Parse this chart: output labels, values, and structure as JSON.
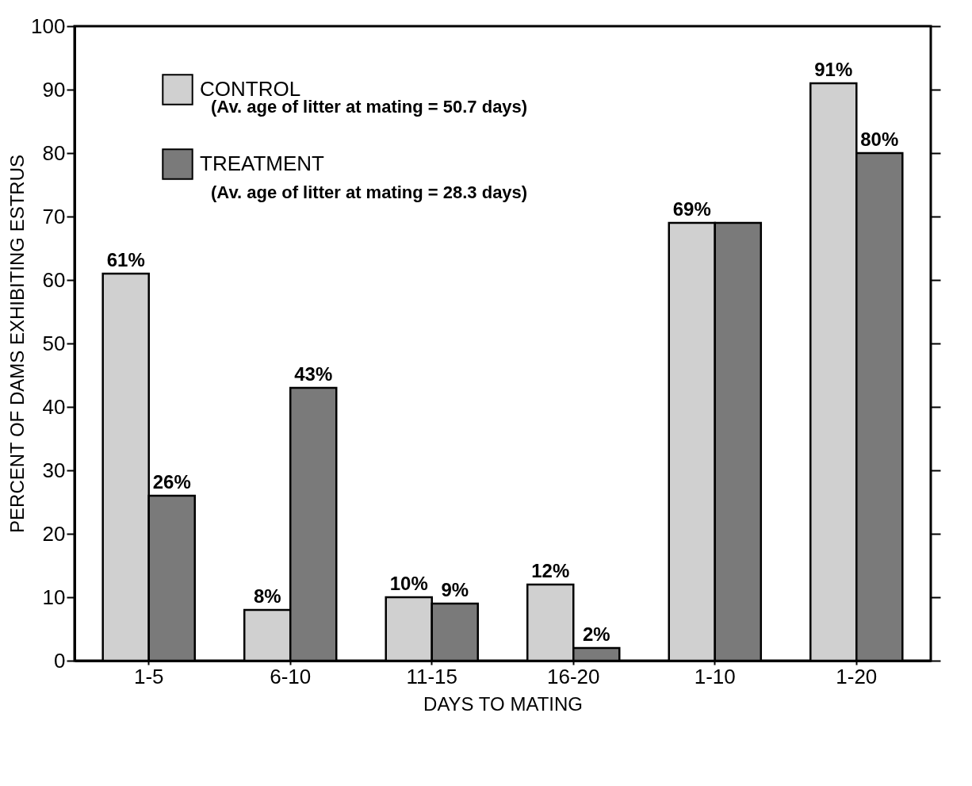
{
  "chart_data": {
    "type": "bar",
    "xlabel": "DAYS TO MATING",
    "ylabel": "PERCENT OF DAMS EXHIBITING ESTRUS",
    "categories": [
      "1-5",
      "6-10",
      "11-15",
      "16-20",
      "1-10",
      "1-20"
    ],
    "series": [
      {
        "name": "CONTROL",
        "color": "#d0d0d0",
        "values": [
          61,
          8,
          10,
          12,
          69,
          91
        ],
        "value_labels": [
          "61%",
          "8%",
          "10%",
          "12%",
          "69%",
          "91%"
        ]
      },
      {
        "name": "TREATMENT",
        "color": "#7a7a7a",
        "values": [
          26,
          43,
          9,
          2,
          69,
          80
        ],
        "value_labels": [
          "26%",
          "43%",
          "9%",
          "2%",
          null,
          "80%"
        ]
      }
    ],
    "annotations": [
      "(Av. age of litter at mating = 50.7 days)",
      "(Av. age of litter at mating = 28.3 days)"
    ],
    "ylim": [
      0,
      100
    ],
    "yticks": [
      0,
      10,
      20,
      30,
      40,
      50,
      60,
      70,
      80,
      90,
      100
    ],
    "grid": false,
    "legend": "top left"
  }
}
